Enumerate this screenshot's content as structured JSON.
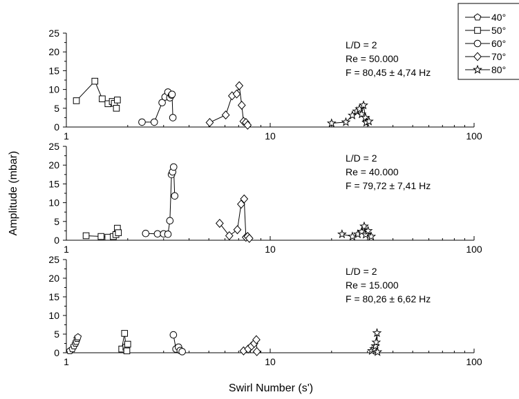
{
  "xlabel": "Swirl Number (s')",
  "ylabel": "Amplitude (mbar)",
  "legend": {
    "position": "top-right",
    "entries": [
      {
        "label": "40°",
        "marker": "pentagon"
      },
      {
        "label": "50°",
        "marker": "square"
      },
      {
        "label": "60°",
        "marker": "circle"
      },
      {
        "label": "70°",
        "marker": "diamond"
      },
      {
        "label": "80°",
        "marker": "star"
      }
    ]
  },
  "chart_data": [
    {
      "type": "line",
      "xscale": "log",
      "xlim": [
        1,
        100
      ],
      "ylim": [
        0,
        25
      ],
      "xticks": [
        "1",
        "10",
        "100"
      ],
      "yticks": [
        "0",
        "5",
        "10",
        "15",
        "20",
        "25"
      ],
      "annotation": [
        "L/D = 2",
        "Re = 50.000",
        "F = 80,45 ± 4,74 Hz"
      ],
      "series": [
        {
          "name": "50°",
          "marker": "square",
          "x": [
            1.12,
            1.38,
            1.5,
            1.6,
            1.68,
            1.72,
            1.76,
            1.78
          ],
          "y": [
            7,
            12.2,
            7.5,
            6.2,
            6.8,
            6.3,
            5,
            7.2
          ]
        },
        {
          "name": "60°",
          "marker": "circle",
          "x": [
            2.35,
            2.7,
            2.95,
            3.05,
            3.15,
            3.22,
            3.28,
            3.3,
            3.33
          ],
          "y": [
            1.3,
            1.3,
            6.5,
            8,
            9.3,
            7.8,
            8.5,
            8.7,
            2.5
          ]
        },
        {
          "name": "70°",
          "marker": "diamond",
          "x": [
            5.05,
            6.05,
            6.5,
            6.85,
            7.05,
            7.25,
            7.4,
            7.6,
            7.75
          ],
          "y": [
            1.2,
            3.2,
            8.3,
            8.8,
            11,
            5.8,
            1.5,
            1.2,
            0.5
          ]
        },
        {
          "name": "80°",
          "marker": "star",
          "x": [
            20,
            23.5,
            25.3,
            26.6,
            27.4,
            28.1,
            28.7,
            29.3,
            29.6,
            30.5
          ],
          "y": [
            1,
            1.3,
            3.1,
            4.2,
            4.8,
            3.4,
            5.8,
            2.5,
            1.2,
            1.5
          ]
        }
      ]
    },
    {
      "type": "line",
      "xscale": "log",
      "xlim": [
        1,
        100
      ],
      "ylim": [
        0,
        25
      ],
      "xticks": [
        "1",
        "10",
        "100"
      ],
      "yticks": [
        "0",
        "5",
        "10",
        "15",
        "20",
        "25"
      ],
      "annotation": [
        "L/D = 2",
        "Re = 40.000",
        "F = 79,72 ± 7,41 Hz"
      ],
      "series": [
        {
          "name": "50°",
          "marker": "square",
          "x": [
            1.25,
            1.48,
            1.6,
            1.7,
            1.75,
            1.78,
            1.8
          ],
          "y": [
            1.2,
            1,
            0.8,
            1,
            1.5,
            3.2,
            2
          ]
        },
        {
          "name": "60°",
          "marker": "circle",
          "x": [
            2.45,
            2.8,
            3.0,
            3.15,
            3.22,
            3.28,
            3.32,
            3.36,
            3.4
          ],
          "y": [
            1.8,
            1.7,
            1.7,
            1.6,
            5.2,
            17.5,
            18.2,
            19.5,
            11.8
          ]
        },
        {
          "name": "70°",
          "marker": "diamond",
          "x": [
            5.65,
            6.3,
            6.9,
            7.2,
            7.45,
            7.6,
            7.75,
            7.9
          ],
          "y": [
            4.5,
            1.2,
            2.8,
            9.6,
            11,
            0.8,
            1,
            0.5
          ]
        },
        {
          "name": "80°",
          "marker": "star",
          "x": [
            22.5,
            25.3,
            26.9,
            28.1,
            28.9,
            29.4,
            30.2,
            31.3
          ],
          "y": [
            1.6,
            1,
            1.6,
            2.3,
            3.7,
            1.5,
            2.5,
            1
          ]
        }
      ]
    },
    {
      "type": "line",
      "xscale": "log",
      "xlim": [
        1,
        100
      ],
      "ylim": [
        0,
        25
      ],
      "xticks": [
        "1",
        "10",
        "100"
      ],
      "yticks": [
        "0",
        "5",
        "10",
        "15",
        "20",
        "25"
      ],
      "annotation": [
        "L/D = 2",
        "Re = 15.000",
        "F = 80,26 ± 6,62 Hz"
      ],
      "series": [
        {
          "name": "40°",
          "marker": "pentagon",
          "x": [
            1.04,
            1.07,
            1.09,
            1.11,
            1.12,
            1.13,
            1.14
          ],
          "y": [
            0.5,
            1,
            1.8,
            2.5,
            3,
            3.8,
            4.2
          ]
        },
        {
          "name": "50°",
          "marker": "square",
          "x": [
            1.87,
            1.93,
            1.96,
            1.98,
            2.0
          ],
          "y": [
            1,
            5.2,
            1.5,
            0.5,
            2.3
          ]
        },
        {
          "name": "60°",
          "marker": "circle",
          "x": [
            3.35,
            3.45,
            3.55,
            3.62,
            3.7
          ],
          "y": [
            4.8,
            1,
            1.5,
            0.6,
            0.3
          ]
        },
        {
          "name": "70°",
          "marker": "diamond",
          "x": [
            7.4,
            7.8,
            8.1,
            8.35,
            8.55,
            8.6
          ],
          "y": [
            0.5,
            1,
            1.8,
            2.5,
            3.5,
            0.3
          ]
        },
        {
          "name": "80°",
          "marker": "star",
          "x": [
            31.5,
            32.3,
            32.8,
            33.1,
            33.4,
            33.6
          ],
          "y": [
            0.5,
            1,
            1.8,
            2.8,
            5.3,
            0.2
          ]
        }
      ]
    }
  ]
}
